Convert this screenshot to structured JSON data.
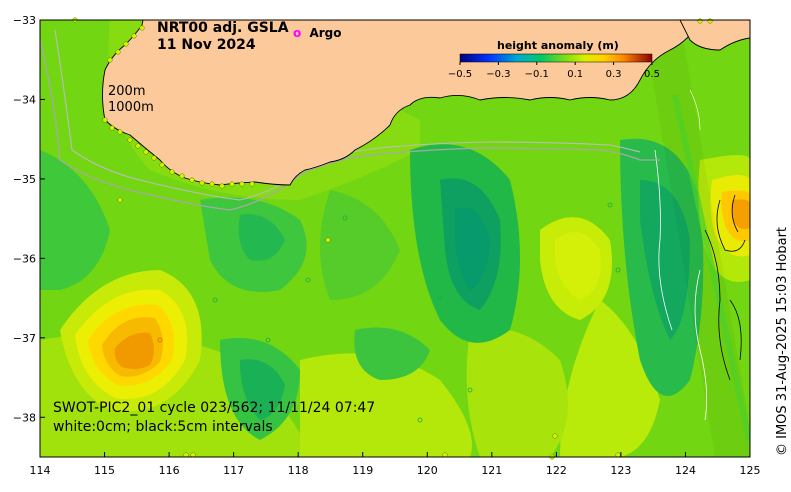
{
  "title": {
    "line1": "NRT00 adj. GSLA",
    "line2": "11 Nov 2024"
  },
  "argo_legend": {
    "symbol": "o",
    "label": "Argo",
    "color": "#ff00ff"
  },
  "colorbar": {
    "title": "height anomaly (m)",
    "ticks": [
      "−0.5",
      "−0.3",
      "−0.1",
      "0.1",
      "0.3",
      "0.5"
    ],
    "range": [
      -0.5,
      0.5
    ]
  },
  "isobaths": {
    "line1": "200m",
    "line2": "1000m"
  },
  "swot_info": {
    "line1": "SWOT-PIC2_01 cycle 023/562; 11/11/24 07:47",
    "line2": "white:0cm; black:5cm intervals"
  },
  "credit": "© IMOS 31-Aug-2025 15:03 Hobart",
  "axes": {
    "lon_ticks": [
      "114",
      "115",
      "116",
      "117",
      "118",
      "119",
      "120",
      "121",
      "122",
      "123",
      "124",
      "125"
    ],
    "lat_ticks": [
      "−33",
      "−34",
      "−35",
      "−36",
      "−37",
      "−38"
    ],
    "lon_range": [
      114,
      125
    ],
    "lat_range": [
      -38.5,
      -33
    ]
  },
  "colors": {
    "land": "#fcc99b",
    "field_base": "#72d612",
    "isobath": "#a8a8a8"
  }
}
